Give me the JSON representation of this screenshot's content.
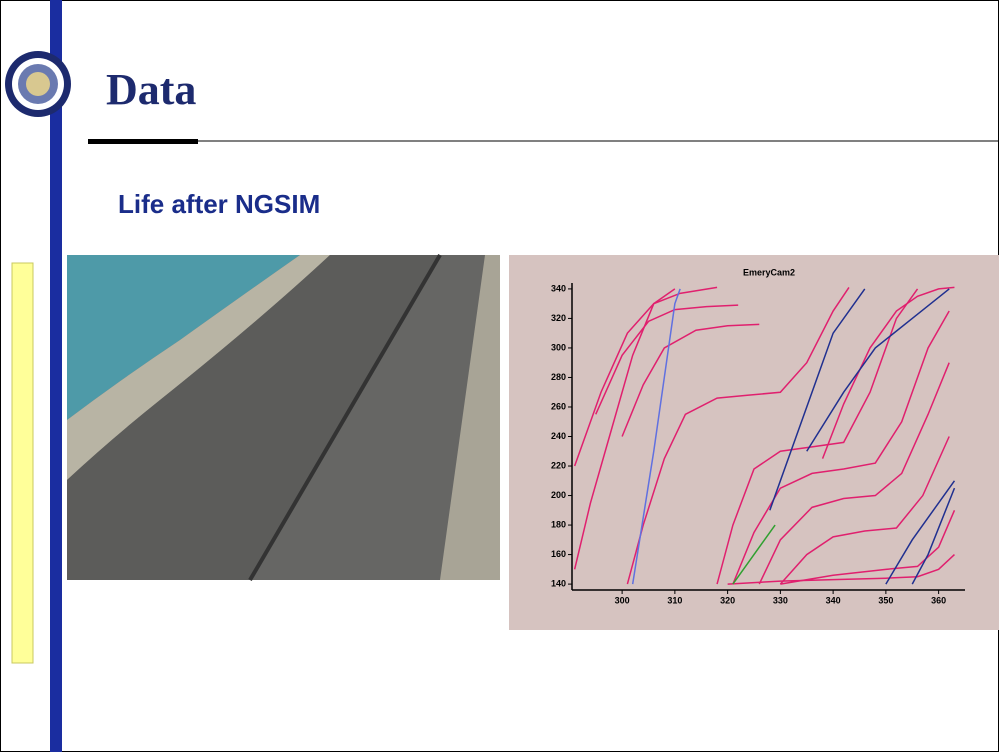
{
  "header": {
    "title": "Data"
  },
  "subtitle": "Life after NGSIM",
  "chart_data": {
    "type": "line",
    "title": "EmeryCam2",
    "xlim": [
      290.5,
      365
    ],
    "ylim": [
      136,
      344
    ],
    "xticks": [
      300,
      310,
      320,
      330,
      340,
      350,
      360
    ],
    "yticks": [
      140,
      160,
      180,
      200,
      220,
      240,
      260,
      280,
      300,
      320,
      340
    ],
    "series": [
      {
        "color": "#e0206e",
        "x": [
          291,
          294,
          298,
          302,
          306,
          310
        ],
        "values": [
          150,
          195,
          245,
          295,
          330,
          340
        ]
      },
      {
        "color": "#e0206e",
        "x": [
          291,
          296,
          301,
          306,
          311,
          318
        ],
        "values": [
          220,
          270,
          310,
          330,
          337,
          341
        ]
      },
      {
        "color": "#e0206e",
        "x": [
          295,
          300,
          305,
          310,
          316,
          322
        ],
        "values": [
          255,
          295,
          318,
          326,
          328,
          329
        ]
      },
      {
        "color": "#e0206e",
        "x": [
          300,
          304,
          308,
          314,
          320,
          326
        ],
        "values": [
          240,
          275,
          300,
          312,
          315,
          316
        ]
      },
      {
        "color": "#e0206e",
        "x": [
          301,
          304,
          308,
          312,
          318,
          324,
          330,
          335,
          340,
          343
        ],
        "values": [
          140,
          180,
          225,
          255,
          266,
          268,
          270,
          290,
          325,
          341
        ]
      },
      {
        "color": "#e0206e",
        "x": [
          318,
          321,
          325,
          330,
          336,
          342,
          347,
          352,
          356
        ],
        "values": [
          140,
          180,
          218,
          230,
          233,
          236,
          270,
          320,
          340
        ]
      },
      {
        "color": "#e0206e",
        "x": [
          321,
          325,
          330,
          336,
          342,
          348,
          353,
          358,
          362
        ],
        "values": [
          140,
          175,
          205,
          215,
          218,
          222,
          250,
          300,
          325
        ]
      },
      {
        "color": "#e0206e",
        "x": [
          326,
          330,
          336,
          342,
          348,
          353,
          358,
          362
        ],
        "values": [
          140,
          170,
          192,
          198,
          200,
          215,
          255,
          290
        ]
      },
      {
        "color": "#e0206e",
        "x": [
          330,
          335,
          340,
          346,
          352,
          357,
          362
        ],
        "values": [
          140,
          160,
          172,
          176,
          178,
          200,
          240
        ]
      },
      {
        "color": "#e0206e",
        "x": [
          330,
          340,
          350,
          356,
          360,
          363
        ],
        "values": [
          140,
          146,
          150,
          152,
          165,
          190
        ]
      },
      {
        "color": "#e0206e",
        "x": [
          320,
          330,
          340,
          350,
          356,
          360,
          363
        ],
        "values": [
          140,
          142,
          143,
          144,
          145,
          150,
          160
        ]
      },
      {
        "color": "#e0206e",
        "x": [
          338,
          342,
          347,
          352,
          356,
          360,
          363
        ],
        "values": [
          225,
          262,
          300,
          325,
          335,
          340,
          341
        ]
      },
      {
        "color": "#6070e0",
        "x": [
          302,
          306,
          310,
          311
        ],
        "values": [
          140,
          230,
          330,
          340
        ]
      },
      {
        "color": "#203090",
        "x": [
          328,
          332,
          336,
          340,
          346
        ],
        "values": [
          190,
          230,
          270,
          310,
          340
        ]
      },
      {
        "color": "#203090",
        "x": [
          335,
          342,
          348,
          355,
          362
        ],
        "values": [
          230,
          270,
          300,
          320,
          340
        ]
      },
      {
        "color": "#203090",
        "x": [
          350,
          355,
          363
        ],
        "values": [
          140,
          170,
          210
        ]
      },
      {
        "color": "#203090",
        "x": [
          355,
          358,
          363
        ],
        "values": [
          140,
          160,
          205
        ]
      },
      {
        "color": "#30a030",
        "x": [
          321,
          324,
          327,
          329
        ],
        "values": [
          140,
          155,
          170,
          180
        ]
      }
    ]
  }
}
